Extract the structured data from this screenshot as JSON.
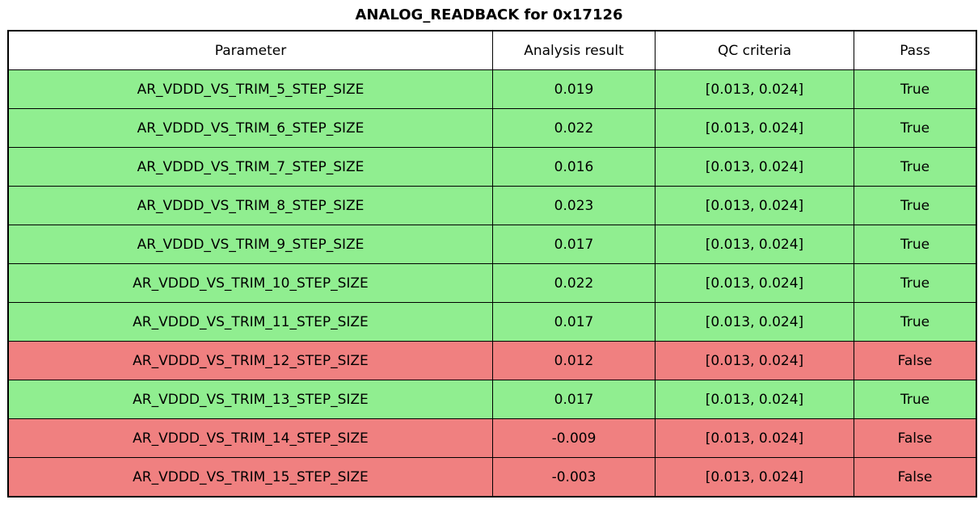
{
  "title": "ANALOG_READBACK for 0x17126",
  "colors": {
    "pass_row": "#90ee90",
    "fail_row": "#f08080",
    "header_bg": "#ffffff",
    "border": "#000000",
    "text": "#000000"
  },
  "chart_data": {
    "type": "table",
    "title": "ANALOG_READBACK for 0x17126",
    "columns": [
      "Parameter",
      "Analysis result",
      "QC criteria",
      "Pass"
    ],
    "rows": [
      [
        "AR_VDDD_VS_TRIM_5_STEP_SIZE",
        0.019,
        "[0.013, 0.024]",
        "True"
      ],
      [
        "AR_VDDD_VS_TRIM_6_STEP_SIZE",
        0.022,
        "[0.013, 0.024]",
        "True"
      ],
      [
        "AR_VDDD_VS_TRIM_7_STEP_SIZE",
        0.016,
        "[0.013, 0.024]",
        "True"
      ],
      [
        "AR_VDDD_VS_TRIM_8_STEP_SIZE",
        0.023,
        "[0.013, 0.024]",
        "True"
      ],
      [
        "AR_VDDD_VS_TRIM_9_STEP_SIZE",
        0.017,
        "[0.013, 0.024]",
        "True"
      ],
      [
        "AR_VDDD_VS_TRIM_10_STEP_SIZE",
        0.022,
        "[0.013, 0.024]",
        "True"
      ],
      [
        "AR_VDDD_VS_TRIM_11_STEP_SIZE",
        0.017,
        "[0.013, 0.024]",
        "True"
      ],
      [
        "AR_VDDD_VS_TRIM_12_STEP_SIZE",
        0.012,
        "[0.013, 0.024]",
        "False"
      ],
      [
        "AR_VDDD_VS_TRIM_13_STEP_SIZE",
        0.017,
        "[0.013, 0.024]",
        "True"
      ],
      [
        "AR_VDDD_VS_TRIM_14_STEP_SIZE",
        -0.009,
        "[0.013, 0.024]",
        "False"
      ],
      [
        "AR_VDDD_VS_TRIM_15_STEP_SIZE",
        -0.003,
        "[0.013, 0.024]",
        "False"
      ]
    ]
  }
}
